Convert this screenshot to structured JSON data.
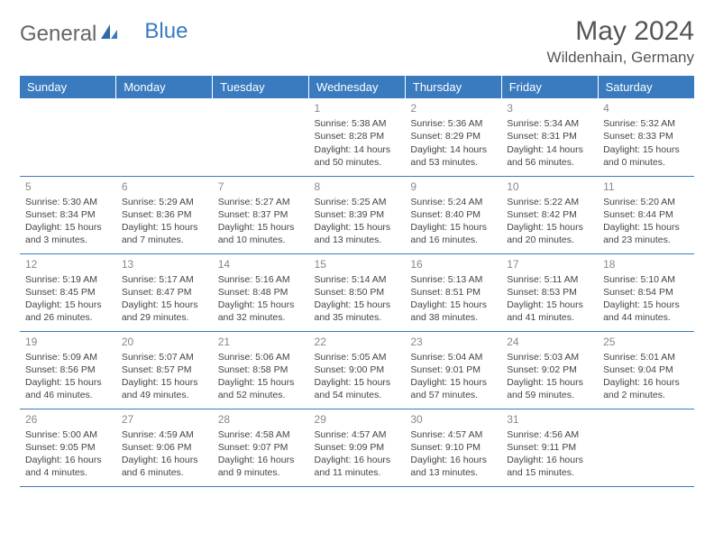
{
  "logo": {
    "part1": "General",
    "part2": "Blue"
  },
  "header": {
    "month": "May 2024",
    "location": "Wildenhain, Germany"
  },
  "weekdays": [
    "Sunday",
    "Monday",
    "Tuesday",
    "Wednesday",
    "Thursday",
    "Friday",
    "Saturday"
  ],
  "colors": {
    "headerBg": "#3a7bbf",
    "headerText": "#ffffff",
    "border": "#3a7bbf",
    "dayNum": "#888888",
    "bodyText": "#444444",
    "logoBlue": "#3a7bbf"
  },
  "startOffset": 3,
  "days": [
    {
      "n": "1",
      "sunrise": "5:38 AM",
      "sunset": "8:28 PM",
      "daylight": "14 hours and 50 minutes."
    },
    {
      "n": "2",
      "sunrise": "5:36 AM",
      "sunset": "8:29 PM",
      "daylight": "14 hours and 53 minutes."
    },
    {
      "n": "3",
      "sunrise": "5:34 AM",
      "sunset": "8:31 PM",
      "daylight": "14 hours and 56 minutes."
    },
    {
      "n": "4",
      "sunrise": "5:32 AM",
      "sunset": "8:33 PM",
      "daylight": "15 hours and 0 minutes."
    },
    {
      "n": "5",
      "sunrise": "5:30 AM",
      "sunset": "8:34 PM",
      "daylight": "15 hours and 3 minutes."
    },
    {
      "n": "6",
      "sunrise": "5:29 AM",
      "sunset": "8:36 PM",
      "daylight": "15 hours and 7 minutes."
    },
    {
      "n": "7",
      "sunrise": "5:27 AM",
      "sunset": "8:37 PM",
      "daylight": "15 hours and 10 minutes."
    },
    {
      "n": "8",
      "sunrise": "5:25 AM",
      "sunset": "8:39 PM",
      "daylight": "15 hours and 13 minutes."
    },
    {
      "n": "9",
      "sunrise": "5:24 AM",
      "sunset": "8:40 PM",
      "daylight": "15 hours and 16 minutes."
    },
    {
      "n": "10",
      "sunrise": "5:22 AM",
      "sunset": "8:42 PM",
      "daylight": "15 hours and 20 minutes."
    },
    {
      "n": "11",
      "sunrise": "5:20 AM",
      "sunset": "8:44 PM",
      "daylight": "15 hours and 23 minutes."
    },
    {
      "n": "12",
      "sunrise": "5:19 AM",
      "sunset": "8:45 PM",
      "daylight": "15 hours and 26 minutes."
    },
    {
      "n": "13",
      "sunrise": "5:17 AM",
      "sunset": "8:47 PM",
      "daylight": "15 hours and 29 minutes."
    },
    {
      "n": "14",
      "sunrise": "5:16 AM",
      "sunset": "8:48 PM",
      "daylight": "15 hours and 32 minutes."
    },
    {
      "n": "15",
      "sunrise": "5:14 AM",
      "sunset": "8:50 PM",
      "daylight": "15 hours and 35 minutes."
    },
    {
      "n": "16",
      "sunrise": "5:13 AM",
      "sunset": "8:51 PM",
      "daylight": "15 hours and 38 minutes."
    },
    {
      "n": "17",
      "sunrise": "5:11 AM",
      "sunset": "8:53 PM",
      "daylight": "15 hours and 41 minutes."
    },
    {
      "n": "18",
      "sunrise": "5:10 AM",
      "sunset": "8:54 PM",
      "daylight": "15 hours and 44 minutes."
    },
    {
      "n": "19",
      "sunrise": "5:09 AM",
      "sunset": "8:56 PM",
      "daylight": "15 hours and 46 minutes."
    },
    {
      "n": "20",
      "sunrise": "5:07 AM",
      "sunset": "8:57 PM",
      "daylight": "15 hours and 49 minutes."
    },
    {
      "n": "21",
      "sunrise": "5:06 AM",
      "sunset": "8:58 PM",
      "daylight": "15 hours and 52 minutes."
    },
    {
      "n": "22",
      "sunrise": "5:05 AM",
      "sunset": "9:00 PM",
      "daylight": "15 hours and 54 minutes."
    },
    {
      "n": "23",
      "sunrise": "5:04 AM",
      "sunset": "9:01 PM",
      "daylight": "15 hours and 57 minutes."
    },
    {
      "n": "24",
      "sunrise": "5:03 AM",
      "sunset": "9:02 PM",
      "daylight": "15 hours and 59 minutes."
    },
    {
      "n": "25",
      "sunrise": "5:01 AM",
      "sunset": "9:04 PM",
      "daylight": "16 hours and 2 minutes."
    },
    {
      "n": "26",
      "sunrise": "5:00 AM",
      "sunset": "9:05 PM",
      "daylight": "16 hours and 4 minutes."
    },
    {
      "n": "27",
      "sunrise": "4:59 AM",
      "sunset": "9:06 PM",
      "daylight": "16 hours and 6 minutes."
    },
    {
      "n": "28",
      "sunrise": "4:58 AM",
      "sunset": "9:07 PM",
      "daylight": "16 hours and 9 minutes."
    },
    {
      "n": "29",
      "sunrise": "4:57 AM",
      "sunset": "9:09 PM",
      "daylight": "16 hours and 11 minutes."
    },
    {
      "n": "30",
      "sunrise": "4:57 AM",
      "sunset": "9:10 PM",
      "daylight": "16 hours and 13 minutes."
    },
    {
      "n": "31",
      "sunrise": "4:56 AM",
      "sunset": "9:11 PM",
      "daylight": "16 hours and 15 minutes."
    }
  ],
  "labels": {
    "sunrise": "Sunrise:",
    "sunset": "Sunset:",
    "daylight": "Daylight:"
  }
}
